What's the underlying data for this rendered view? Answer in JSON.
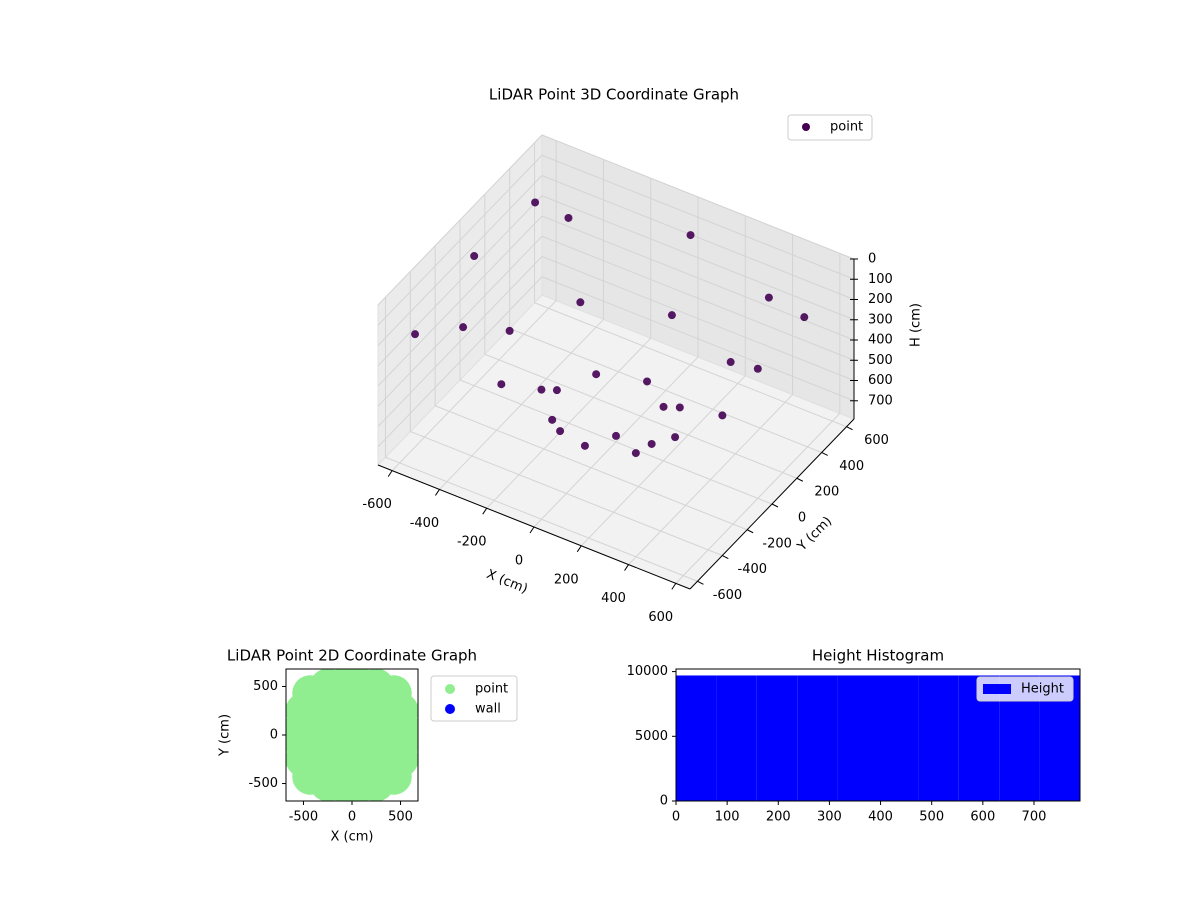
{
  "chart_data": [
    {
      "type": "scatter3d",
      "title": "LiDAR Point 3D Coordinate Graph",
      "xlabel": "X (cm)",
      "ylabel": "Y (cm)",
      "zlabel": "H (cm)",
      "xlim": [
        -660,
        660
      ],
      "ylim": [
        -660,
        660
      ],
      "zlim": [
        0,
        790
      ],
      "z_inverted": true,
      "xticks": [
        -600,
        -400,
        -200,
        0,
        200,
        400,
        600
      ],
      "yticks": [
        -600,
        -400,
        -200,
        0,
        200,
        400,
        600
      ],
      "zticks": [
        0,
        100,
        200,
        300,
        400,
        500,
        600,
        700
      ],
      "grid": true,
      "legend": "upper right",
      "series": [
        {
          "name": "point",
          "color": "#440154",
          "x": [
            600,
            424,
            0,
            -424,
            -600,
            -424,
            0,
            424,
            450,
            318,
            0,
            -318,
            -450,
            -318,
            0,
            318,
            250,
            177,
            0,
            -177,
            -250,
            -177,
            0,
            177,
            0,
            -500,
            -640,
            560
          ],
          "y": [
            0,
            424,
            600,
            424,
            0,
            -424,
            -600,
            -424,
            0,
            318,
            450,
            318,
            0,
            -318,
            -450,
            -318,
            0,
            177,
            250,
            177,
            0,
            -177,
            -250,
            -177,
            0,
            300,
            -400,
            450
          ],
          "z": [
            150,
            150,
            150,
            150,
            150,
            150,
            150,
            150,
            450,
            450,
            450,
            450,
            450,
            450,
            450,
            450,
            650,
            650,
            650,
            650,
            650,
            650,
            650,
            650,
            760,
            30,
            300,
            200
          ]
        }
      ]
    },
    {
      "type": "scatter",
      "title": "LiDAR Point 2D Coordinate Graph",
      "xlabel": "X (cm)",
      "ylabel": "Y (cm)",
      "xlim": [
        -680,
        680
      ],
      "ylim": [
        -680,
        680
      ],
      "xticks": [
        -500,
        0,
        500
      ],
      "yticks": [
        -500,
        0,
        500
      ],
      "legend": "outside right",
      "series": [
        {
          "name": "point",
          "color": "#90ee90",
          "x": [
            -430,
            -250,
            0,
            250,
            430,
            -500,
            -250,
            0,
            250,
            500,
            -500,
            -250,
            0,
            250,
            500,
            -500,
            -250,
            0,
            250,
            500,
            -430,
            -250,
            0,
            250,
            430,
            -600,
            600,
            0,
            0
          ],
          "y": [
            430,
            500,
            500,
            500,
            430,
            250,
            250,
            250,
            250,
            250,
            0,
            0,
            0,
            0,
            0,
            -250,
            -250,
            -250,
            -250,
            -250,
            -430,
            -500,
            -500,
            -500,
            -430,
            0,
            0,
            600,
            -600
          ]
        },
        {
          "name": "wall",
          "color": "#0000ff",
          "x": [],
          "y": []
        }
      ]
    },
    {
      "type": "histogram",
      "title": "Height Histogram",
      "name": "Height",
      "color": "#0000ff",
      "bins": [
        0,
        79,
        158,
        237,
        316,
        395,
        474,
        553,
        632,
        711,
        790
      ],
      "counts": [
        9700,
        9700,
        9700,
        9700,
        9700,
        9700,
        9700,
        9700,
        9700,
        9700
      ],
      "xlim": [
        0,
        790
      ],
      "ylim": [
        0,
        10200
      ],
      "xticks": [
        0,
        100,
        200,
        300,
        400,
        500,
        600,
        700
      ],
      "yticks": [
        0,
        5000,
        10000
      ],
      "legend": "upper right"
    }
  ]
}
